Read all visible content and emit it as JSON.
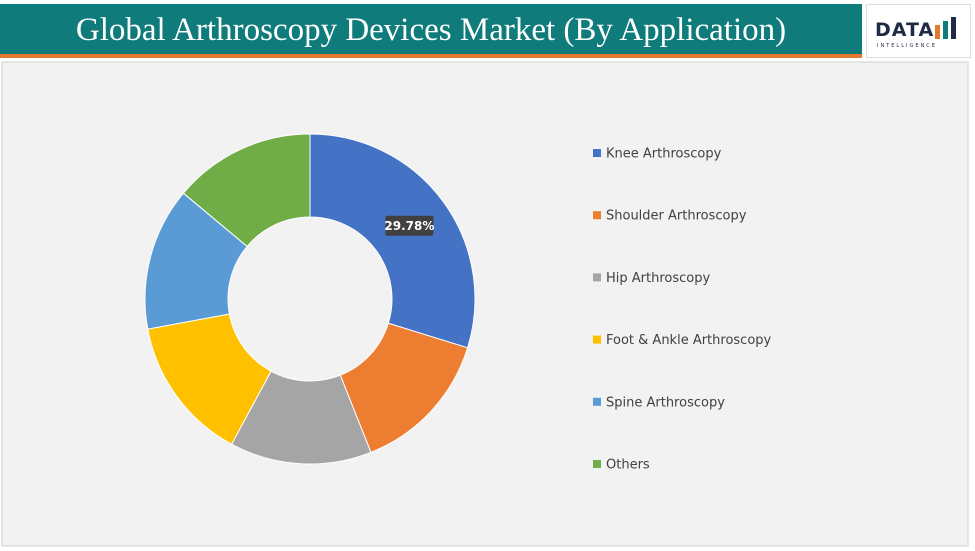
{
  "header": {
    "logo_text": "DATA",
    "logo_subtext": "INTELLIGENCE"
  },
  "chart_data": {
    "type": "donut",
    "title": "Global Arthroscopy Devices Market (By Application)",
    "categories": [
      "Knee Arthroscopy",
      "Shoulder Arthroscopy",
      "Hip Arthroscopy",
      "Foot & Ankle Arthroscopy",
      "Spine Arthroscopy",
      "Others"
    ],
    "values": [
      29.78,
      14.2,
      13.9,
      14.2,
      14.0,
      13.92
    ],
    "value_labels": [
      "29.78%",
      null,
      null,
      null,
      null,
      null
    ],
    "colors": [
      "#4472c4",
      "#ed7d31",
      "#a5a5a5",
      "#ffc000",
      "#5b9bd5",
      "#70ad47"
    ],
    "legend": "right"
  }
}
